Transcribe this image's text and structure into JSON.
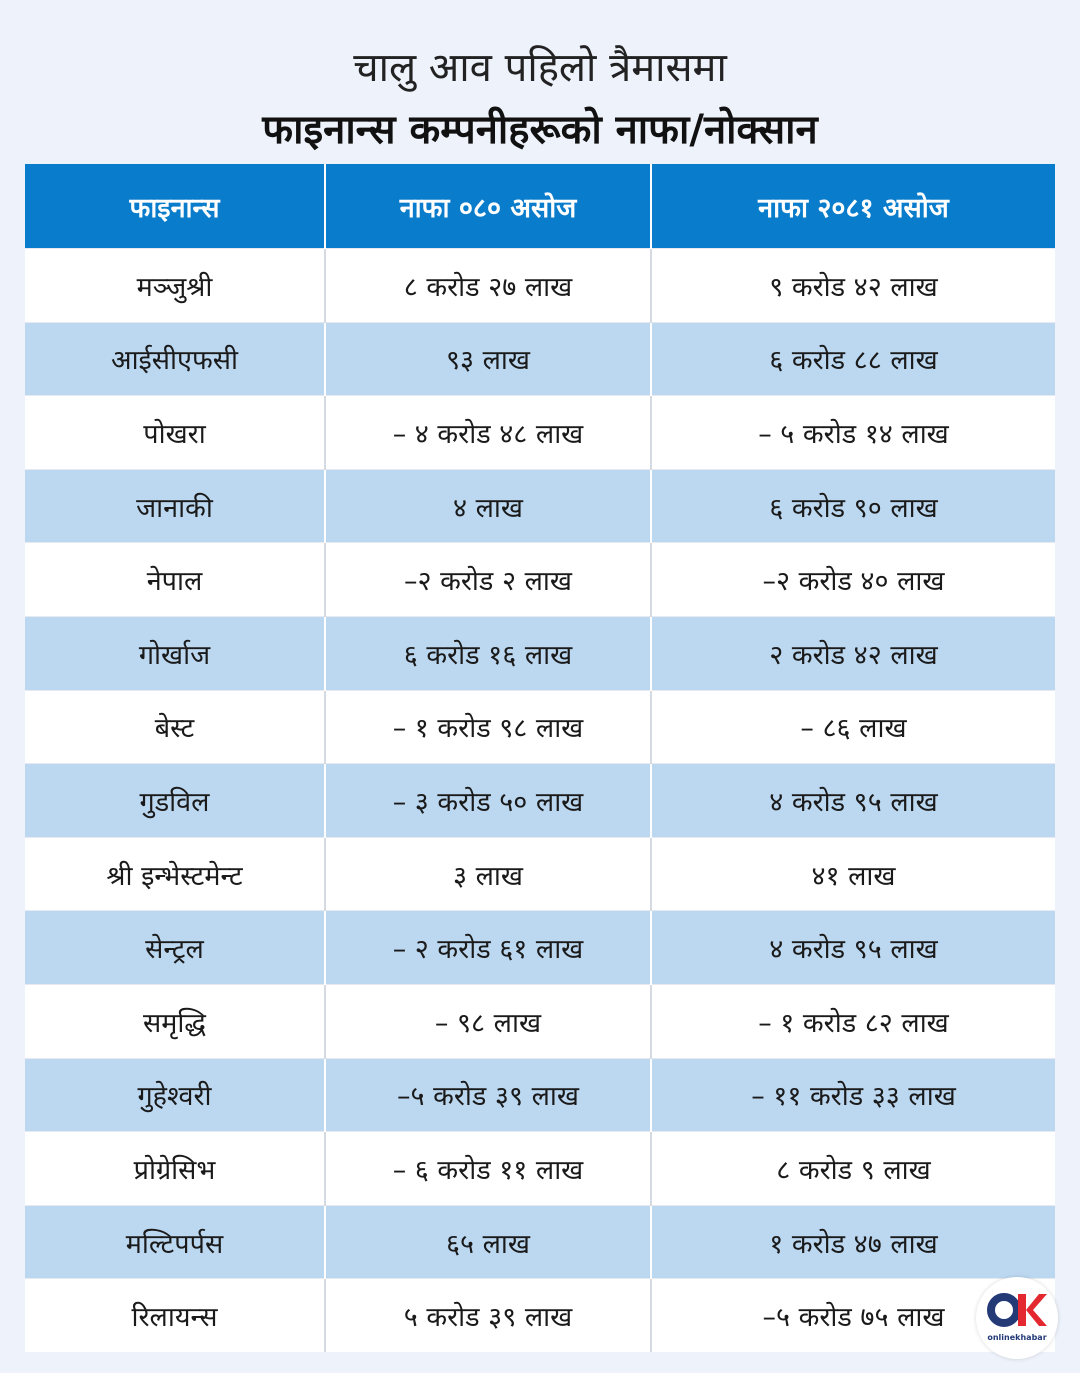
{
  "title": {
    "line1": "चालु आव पहिलो त्रैमासमा",
    "line2": "फाइनान्स कम्पनीहरूको नाफा/नोक्सान"
  },
  "table": {
    "headers": [
      "फाइनान्स",
      "नाफा ०८० असोज",
      "नाफा २०८१ असोज"
    ],
    "rows": [
      [
        "मञ्जुश्री",
        "८ करोड २७ लाख",
        "९ करोड ४२ लाख"
      ],
      [
        "आईसीएफसी",
        "९३ लाख",
        "६ करोड ८८ लाख"
      ],
      [
        "पोखरा",
        "– ४ करोड ४८ लाख",
        "– ५ करोड १४ लाख"
      ],
      [
        "जानाकी",
        "४ लाख",
        "६ करोड ९० लाख"
      ],
      [
        "नेपाल",
        "–२ करोड २ लाख",
        "–२ करोड ४० लाख"
      ],
      [
        "गोर्खाज",
        "६ करोड १६ लाख",
        "२ करोड ४२ लाख"
      ],
      [
        "बेस्ट",
        "– १ करोड ९८ लाख",
        "– ८६ लाख"
      ],
      [
        "गुडविल",
        "– ३ करोड ५० लाख",
        "४ करोड ९५ लाख"
      ],
      [
        "श्री इन्भेस्टमेन्ट",
        "३ लाख",
        "४१ लाख"
      ],
      [
        "सेन्ट्रल",
        "– २ करोड ६१ लाख",
        "४ करोड ९५ लाख"
      ],
      [
        "समृद्धि",
        "– ९८ लाख",
        "– १ करोड ८२ लाख"
      ],
      [
        "गुहेश्वरी",
        "–५ करोड ३९ लाख",
        "– ११ करोड ३३ लाख"
      ],
      [
        "प्रोग्रेसिभ",
        "– ६ करोड ११ लाख",
        "८ करोड ९ लाख"
      ],
      [
        "मल्टिपर्पस",
        "६५ लाख",
        "१ करोड ४७ लाख"
      ],
      [
        "रिलायन्स",
        "५ करोड ३९ लाख",
        "–५ करोड ७५ लाख"
      ]
    ]
  },
  "logo": {
    "text": "onlinekhabar",
    "colors": {
      "o": "#233a77",
      "k": "#e3282f"
    }
  },
  "colors": {
    "header_bg": "#0a7ccc",
    "stripe_bg": "#bcd8f1",
    "page_bg": "#eef2fa"
  }
}
